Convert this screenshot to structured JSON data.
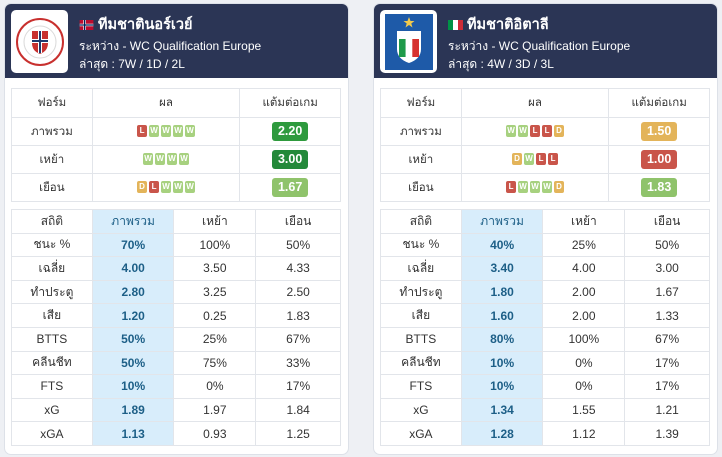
{
  "teams": [
    {
      "name": "ทีมชาตินอร์เวย์",
      "competition": "ระหว่าง - WC Qualification Europe",
      "last": "ล่าสุด : 7W / 1D / 2L",
      "form_headers": [
        "ฟอร์ม",
        "ผล",
        "แต้มต่อเกม"
      ],
      "form_rows": [
        {
          "label": "ภาพรวม",
          "results": [
            "L",
            "W",
            "W",
            "W",
            "W"
          ],
          "ppg": "2.20",
          "ppg_color": "#2e9a3e"
        },
        {
          "label": "เหย้า",
          "results": [
            "W",
            "W",
            "W",
            "W"
          ],
          "ppg": "3.00",
          "ppg_color": "#23893a"
        },
        {
          "label": "เยือน",
          "results": [
            "D",
            "L",
            "W",
            "W",
            "W"
          ],
          "ppg": "1.67",
          "ppg_color": "#8fc36b"
        }
      ],
      "stats_headers": [
        "สถิติ",
        "ภาพรวม",
        "เหย้า",
        "เยือน"
      ],
      "stats": [
        {
          "label": "ชนะ %",
          "overall": "70%",
          "home": "100%",
          "away": "50%"
        },
        {
          "label": "เฉลี่ย",
          "overall": "4.00",
          "home": "3.50",
          "away": "4.33"
        },
        {
          "label": "ทำประตู",
          "overall": "2.80",
          "home": "3.25",
          "away": "2.50"
        },
        {
          "label": "เสีย",
          "overall": "1.20",
          "home": "0.25",
          "away": "1.83"
        },
        {
          "label": "BTTS",
          "overall": "50%",
          "home": "25%",
          "away": "67%"
        },
        {
          "label": "คลีนชีท",
          "overall": "50%",
          "home": "75%",
          "away": "33%"
        },
        {
          "label": "FTS",
          "overall": "10%",
          "home": "0%",
          "away": "17%"
        },
        {
          "label": "xG",
          "overall": "1.89",
          "home": "1.97",
          "away": "1.84"
        },
        {
          "label": "xGA",
          "overall": "1.13",
          "home": "0.93",
          "away": "1.25"
        }
      ]
    },
    {
      "name": "ทีมชาติอิตาลี",
      "competition": "ระหว่าง - WC Qualification Europe",
      "last": "ล่าสุด : 4W / 3D / 3L",
      "form_headers": [
        "ฟอร์ม",
        "ผล",
        "แต้มต่อเกม"
      ],
      "form_rows": [
        {
          "label": "ภาพรวม",
          "results": [
            "W",
            "W",
            "L",
            "L",
            "D"
          ],
          "ppg": "1.50",
          "ppg_color": "#e3b45a"
        },
        {
          "label": "เหย้า",
          "results": [
            "D",
            "W",
            "L",
            "L"
          ],
          "ppg": "1.00",
          "ppg_color": "#c9554a"
        },
        {
          "label": "เยือน",
          "results": [
            "L",
            "W",
            "W",
            "W",
            "D"
          ],
          "ppg": "1.83",
          "ppg_color": "#8fc36b"
        }
      ],
      "stats_headers": [
        "สถิติ",
        "ภาพรวม",
        "เหย้า",
        "เยือน"
      ],
      "stats": [
        {
          "label": "ชนะ %",
          "overall": "40%",
          "home": "25%",
          "away": "50%"
        },
        {
          "label": "เฉลี่ย",
          "overall": "3.40",
          "home": "4.00",
          "away": "3.00"
        },
        {
          "label": "ทำประตู",
          "overall": "1.80",
          "home": "2.00",
          "away": "1.67"
        },
        {
          "label": "เสีย",
          "overall": "1.60",
          "home": "2.00",
          "away": "1.33"
        },
        {
          "label": "BTTS",
          "overall": "80%",
          "home": "100%",
          "away": "67%"
        },
        {
          "label": "คลีนชีท",
          "overall": "10%",
          "home": "0%",
          "away": "17%"
        },
        {
          "label": "FTS",
          "overall": "10%",
          "home": "0%",
          "away": "17%"
        },
        {
          "label": "xG",
          "overall": "1.34",
          "home": "1.55",
          "away": "1.21"
        },
        {
          "label": "xGA",
          "overall": "1.28",
          "home": "1.12",
          "away": "1.39"
        }
      ]
    }
  ]
}
